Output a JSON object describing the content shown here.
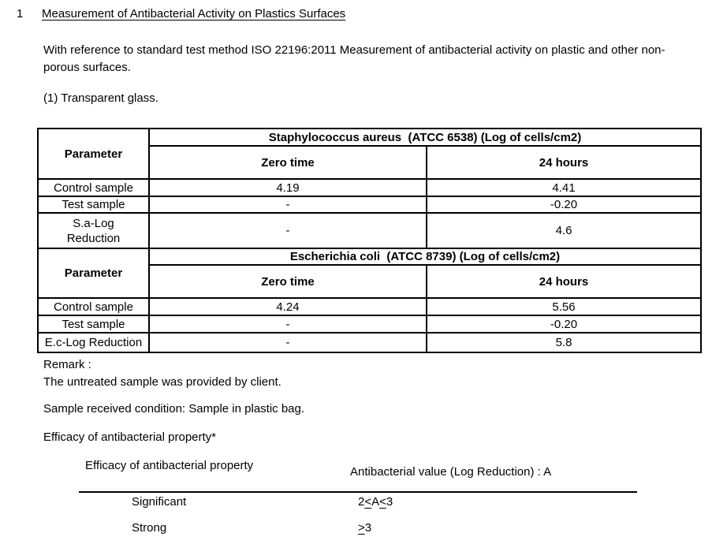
{
  "page": {
    "section_number": "1",
    "title": "Measurement of Antibacterial Activity on Plastics Surfaces",
    "intro": "With reference to standard test method ISO 22196:2011 Measurement of antibacterial activity on plastic and other non-porous surfaces.",
    "subitem": "(1) Transparent glass."
  },
  "results_table": {
    "sections": [
      {
        "organism_header": "Staphylococcus aureus  (ATCC 6538) (Log of cells/cm2)",
        "parameter_label": "Parameter",
        "col_zero_time": "Zero time",
        "col_24_hours": "24 hours",
        "rows": [
          {
            "label": "Control sample",
            "zero_time": "4.19",
            "hours24": "4.41"
          },
          {
            "label": "Test sample",
            "zero_time": "-",
            "hours24": "-0.20"
          },
          {
            "label": "S.a-Log\nReduction",
            "zero_time": "-",
            "hours24": "4.6"
          }
        ]
      },
      {
        "organism_header": "Escherichia coli  (ATCC 8739) (Log of cells/cm2)",
        "parameter_label": "Parameter",
        "col_zero_time": "Zero time",
        "col_24_hours": "24 hours",
        "rows": [
          {
            "label": "Control sample",
            "zero_time": "4.24",
            "hours24": "5.56"
          },
          {
            "label": "Test sample",
            "zero_time": "-",
            "hours24": "-0.20"
          },
          {
            "label": "E.c-Log Reduction",
            "zero_time": "-",
            "hours24": "5.8"
          }
        ]
      }
    ]
  },
  "remark": {
    "label": "Remark :",
    "text": "The untreated sample was provided by client."
  },
  "sample_condition": "Sample received condition: Sample in plastic bag.",
  "efficacy_note": "Efficacy of antibacterial property*",
  "efficacy_table": {
    "col_property": "Efficacy of antibacterial property",
    "col_value": "Antibacterial value (Log Reduction) : A",
    "rows": [
      {
        "label": "Significant",
        "value": "2≤A≤3"
      },
      {
        "label": "Strong",
        "value": "≥3"
      }
    ]
  },
  "colors": {
    "text": "#000000",
    "background": "#ffffff",
    "table_border": "#000000"
  }
}
